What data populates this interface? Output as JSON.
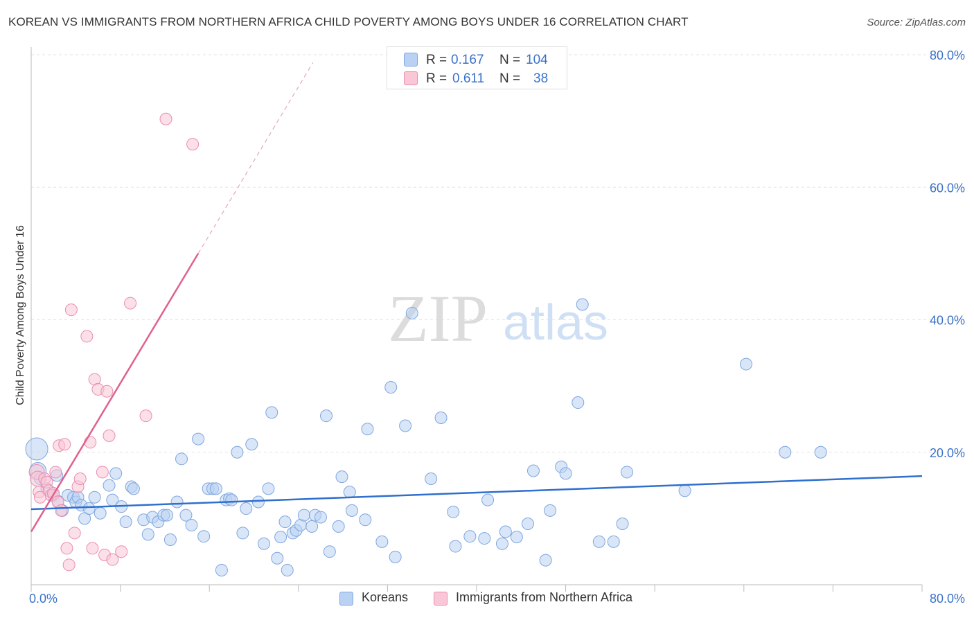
{
  "title": "KOREAN VS IMMIGRANTS FROM NORTHERN AFRICA CHILD POVERTY AMONG BOYS UNDER 16 CORRELATION CHART",
  "source": "Source: ZipAtlas.com",
  "watermark": {
    "zip": "ZIP",
    "atlas": "atlas"
  },
  "legend": {
    "rows": [
      {
        "r_label": "R =",
        "r_value": "0.167",
        "n_label": "N =",
        "n_value": "104"
      },
      {
        "r_label": "R =",
        "r_value": "0.611",
        "n_label": "N =",
        "n_value": "38"
      }
    ]
  },
  "bottom_legend": {
    "koreans": "Koreans",
    "immigrants": "Immigrants from Northern Africa"
  },
  "colors": {
    "blue": "#7ea6e0",
    "blue_fill": "#b9d1f2",
    "blue_line": "#2f6fce",
    "pink": "#e98db0",
    "pink_fill": "#f9c7d6",
    "pink_line": "#e0608f",
    "axis_text": "#3a72c9"
  },
  "chart_data": {
    "type": "scatter",
    "title": "KOREAN VS IMMIGRANTS FROM NORTHERN AFRICA CHILD POVERTY AMONG BOYS UNDER 16 CORRELATION CHART",
    "xlabel": "",
    "ylabel": "Child Poverty Among Boys Under 16",
    "xlim": [
      0,
      80
    ],
    "ylim": [
      0,
      80
    ],
    "x_tick_labels": [
      "0.0%",
      "80.0%"
    ],
    "y_tick_labels": [
      "20.0%",
      "40.0%",
      "60.0%",
      "80.0%"
    ],
    "y_ticks": [
      20,
      40,
      60,
      80
    ],
    "grid": true,
    "legend_position": "top-center",
    "series": [
      {
        "name": "Koreans",
        "R": 0.167,
        "N": 104,
        "trend": {
          "x": [
            0,
            80
          ],
          "y": [
            11.4,
            16.4
          ],
          "style": "solid"
        },
        "points": [
          [
            0.5,
            20.5
          ],
          [
            0.6,
            17.2
          ],
          [
            0.8,
            16.0
          ],
          [
            1.4,
            14.5
          ],
          [
            2.3,
            16.5
          ],
          [
            2.0,
            13.5
          ],
          [
            2.4,
            12.6
          ],
          [
            2.8,
            11.2
          ],
          [
            3.3,
            13.5
          ],
          [
            3.8,
            13.2
          ],
          [
            4.0,
            12.5
          ],
          [
            4.2,
            13.2
          ],
          [
            4.5,
            12.0
          ],
          [
            4.8,
            10.0
          ],
          [
            5.2,
            11.5
          ],
          [
            5.7,
            13.2
          ],
          [
            6.2,
            10.8
          ],
          [
            7.0,
            15.0
          ],
          [
            7.3,
            12.8
          ],
          [
            7.6,
            16.8
          ],
          [
            8.1,
            11.8
          ],
          [
            8.5,
            9.5
          ],
          [
            9.0,
            14.8
          ],
          [
            9.2,
            14.5
          ],
          [
            10.1,
            9.8
          ],
          [
            10.5,
            7.6
          ],
          [
            10.9,
            10.2
          ],
          [
            11.4,
            9.5
          ],
          [
            11.9,
            10.5
          ],
          [
            12.2,
            10.5
          ],
          [
            12.5,
            6.8
          ],
          [
            13.1,
            12.5
          ],
          [
            13.5,
            19.0
          ],
          [
            13.9,
            10.5
          ],
          [
            14.4,
            9.0
          ],
          [
            15.0,
            22.0
          ],
          [
            15.5,
            7.3
          ],
          [
            15.9,
            14.5
          ],
          [
            16.3,
            14.5
          ],
          [
            16.6,
            14.5
          ],
          [
            17.1,
            2.2
          ],
          [
            17.5,
            12.8
          ],
          [
            17.8,
            13.0
          ],
          [
            18.0,
            12.8
          ],
          [
            18.5,
            20.0
          ],
          [
            19.0,
            7.8
          ],
          [
            19.3,
            11.5
          ],
          [
            19.8,
            21.2
          ],
          [
            20.4,
            12.5
          ],
          [
            20.9,
            6.2
          ],
          [
            21.3,
            14.5
          ],
          [
            21.6,
            26.0
          ],
          [
            22.1,
            4.0
          ],
          [
            22.4,
            7.2
          ],
          [
            22.8,
            9.5
          ],
          [
            23.0,
            2.2
          ],
          [
            23.5,
            7.8
          ],
          [
            23.8,
            8.2
          ],
          [
            24.2,
            9.0
          ],
          [
            24.5,
            10.5
          ],
          [
            25.2,
            8.8
          ],
          [
            25.5,
            10.5
          ],
          [
            26.0,
            10.2
          ],
          [
            26.5,
            25.5
          ],
          [
            26.8,
            5.0
          ],
          [
            27.6,
            8.8
          ],
          [
            27.9,
            16.3
          ],
          [
            28.6,
            14.0
          ],
          [
            28.8,
            11.2
          ],
          [
            30.0,
            9.8
          ],
          [
            30.2,
            23.5
          ],
          [
            31.5,
            6.5
          ],
          [
            32.3,
            29.8
          ],
          [
            32.7,
            4.2
          ],
          [
            33.6,
            24.0
          ],
          [
            34.2,
            41.0
          ],
          [
            35.9,
            16.0
          ],
          [
            36.8,
            25.2
          ],
          [
            37.9,
            11.0
          ],
          [
            38.1,
            5.8
          ],
          [
            39.4,
            7.3
          ],
          [
            40.7,
            7.0
          ],
          [
            41.0,
            12.8
          ],
          [
            42.3,
            6.2
          ],
          [
            42.6,
            8.0
          ],
          [
            43.6,
            7.2
          ],
          [
            44.6,
            9.2
          ],
          [
            45.1,
            17.2
          ],
          [
            46.2,
            3.7
          ],
          [
            46.6,
            11.2
          ],
          [
            47.6,
            17.8
          ],
          [
            48.0,
            16.8
          ],
          [
            49.1,
            27.5
          ],
          [
            49.5,
            42.3
          ],
          [
            51.0,
            6.5
          ],
          [
            52.3,
            6.5
          ],
          [
            53.1,
            9.2
          ],
          [
            53.5,
            17.0
          ],
          [
            58.7,
            14.2
          ],
          [
            64.2,
            33.3
          ],
          [
            67.7,
            20.0
          ],
          [
            70.9,
            20.0
          ]
        ]
      },
      {
        "name": "Immigrants from Northern Africa",
        "R": 0.611,
        "N": 38,
        "trend": {
          "x": [
            0,
            15.0
          ],
          "y": [
            8.0,
            50.0
          ],
          "dashed_to": [
            25.3,
            78.8
          ],
          "style": "solid+dashed"
        },
        "points": [
          [
            0.5,
            17.0
          ],
          [
            0.6,
            16.0
          ],
          [
            0.7,
            14.0
          ],
          [
            0.8,
            13.2
          ],
          [
            1.2,
            16.0
          ],
          [
            1.4,
            15.5
          ],
          [
            1.6,
            14.2
          ],
          [
            1.8,
            13.5
          ],
          [
            2.0,
            13.8
          ],
          [
            2.2,
            17.0
          ],
          [
            2.4,
            12.5
          ],
          [
            2.5,
            21.0
          ],
          [
            2.7,
            11.2
          ],
          [
            3.0,
            21.2
          ],
          [
            3.2,
            5.5
          ],
          [
            3.4,
            3.0
          ],
          [
            3.6,
            41.5
          ],
          [
            3.9,
            7.8
          ],
          [
            4.2,
            14.8
          ],
          [
            4.4,
            16.0
          ],
          [
            5.0,
            37.5
          ],
          [
            5.3,
            21.5
          ],
          [
            5.5,
            5.5
          ],
          [
            5.7,
            31.0
          ],
          [
            6.0,
            29.5
          ],
          [
            6.4,
            17.0
          ],
          [
            6.6,
            4.5
          ],
          [
            6.8,
            29.2
          ],
          [
            7.0,
            22.5
          ],
          [
            7.3,
            3.8
          ],
          [
            8.1,
            5.0
          ],
          [
            8.9,
            42.5
          ],
          [
            10.3,
            25.5
          ],
          [
            12.1,
            70.3
          ],
          [
            14.5,
            66.5
          ]
        ]
      }
    ]
  }
}
